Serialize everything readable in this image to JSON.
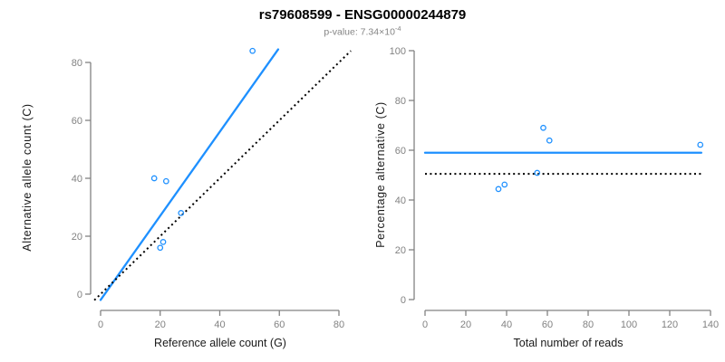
{
  "header": {
    "title": "rs79608599 - ENSG00000244879",
    "p_value_prefix": "p-value: 7.34×10",
    "p_value_exponent": "-4"
  },
  "colors": {
    "accent_blue": "#1E90FF",
    "axis_gray": "#828282",
    "tick_label_gray": "#828282",
    "axis_title_color": "#1a1a1a",
    "dotted_black": "#000000",
    "background": "#ffffff"
  },
  "chart_data": [
    {
      "id": "left",
      "type": "scatter",
      "title": "",
      "xlabel": "Reference allele count (G)",
      "ylabel": "Alternative allele count (C)",
      "xlim": [
        0,
        80
      ],
      "ylim": [
        0,
        80
      ],
      "x_ticks": [
        0,
        20,
        40,
        60,
        80
      ],
      "y_ticks": [
        0,
        20,
        40,
        60,
        80
      ],
      "grid": false,
      "legend": "none",
      "points": [
        {
          "x": 18,
          "y": 40
        },
        {
          "x": 22,
          "y": 39
        },
        {
          "x": 27,
          "y": 28
        },
        {
          "x": 21,
          "y": 18
        },
        {
          "x": 20,
          "y": 16
        },
        {
          "x": 51,
          "y": 84
        }
      ],
      "lines": [
        {
          "name": "fitted-allelic-ratio-line",
          "style": "solid",
          "x1": 0,
          "y1": -2,
          "x2": 59.6,
          "y2": 84.5
        },
        {
          "name": "identity-line",
          "style": "dotted",
          "x1": -2.1,
          "y1": -2.1,
          "x2": 84,
          "y2": 84
        }
      ]
    },
    {
      "id": "right",
      "type": "scatter",
      "title": "",
      "xlabel": "Total number of reads",
      "ylabel": "Percentage alternative (C)",
      "xlim": [
        0,
        140
      ],
      "ylim": [
        0,
        100
      ],
      "x_ticks": [
        0,
        20,
        40,
        60,
        80,
        100,
        120,
        140
      ],
      "y_ticks": [
        0,
        20,
        40,
        60,
        80,
        100
      ],
      "grid": false,
      "legend": "none",
      "points": [
        {
          "x": 58,
          "y": 69.0
        },
        {
          "x": 61,
          "y": 63.9
        },
        {
          "x": 55,
          "y": 50.9
        },
        {
          "x": 39,
          "y": 46.2
        },
        {
          "x": 36,
          "y": 44.4
        },
        {
          "x": 135,
          "y": 62.2
        }
      ],
      "lines": [
        {
          "name": "fitted-percentage-line",
          "style": "solid",
          "x1": 0,
          "y1": 59,
          "x2": 135.5,
          "y2": 59
        },
        {
          "name": "expected-percentage-line",
          "style": "dotted",
          "x1": 0,
          "y1": 50.5,
          "x2": 135.5,
          "y2": 50.5
        }
      ]
    }
  ]
}
